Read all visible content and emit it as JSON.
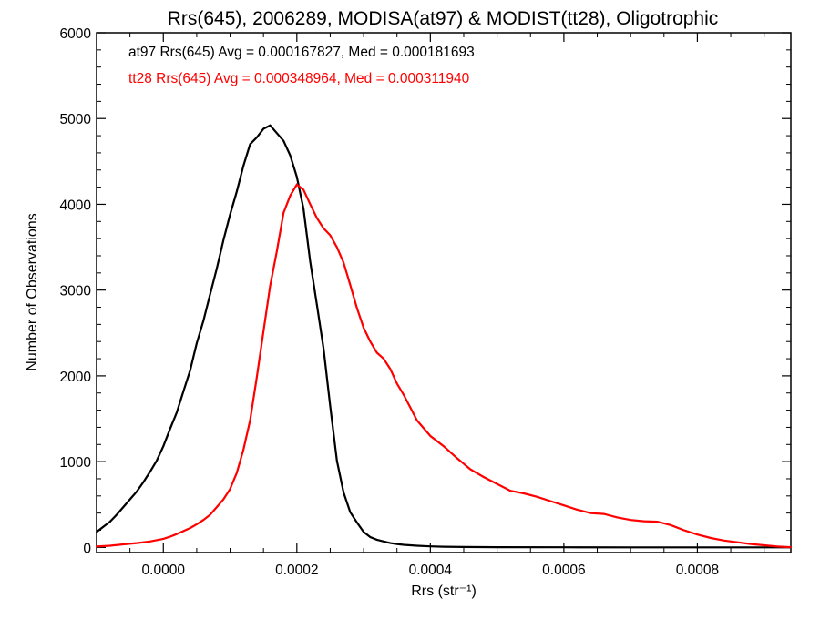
{
  "chart_data": {
    "type": "line",
    "title": "Rrs(645), 2006289, MODISA(at97) & MODIST(tt28), Oligotrophic",
    "xlabel": "Rrs (str⁻¹)",
    "ylabel": "Number of Observations",
    "xlim": [
      -0.0001,
      0.00094
    ],
    "ylim": [
      -60,
      6000
    ],
    "xticks": [
      0.0,
      0.0002,
      0.0004,
      0.0006,
      0.0008
    ],
    "xtick_labels": [
      "0.0000",
      "0.0002",
      "0.0004",
      "0.0006",
      "0.0008"
    ],
    "yticks": [
      0,
      1000,
      2000,
      3000,
      4000,
      5000,
      6000
    ],
    "ytick_labels": [
      "0",
      "1000",
      "2000",
      "3000",
      "4000",
      "5000",
      "6000"
    ],
    "grid": false,
    "legend_position": "top-left",
    "series": [
      {
        "name": "at97",
        "color": "#000000",
        "annotation": "at97 Rrs(645) Avg = 0.000167827, Med = 0.000181693",
        "x": [
          -0.0001,
          -9e-05,
          -8e-05,
          -7e-05,
          -6e-05,
          -5e-05,
          -4e-05,
          -3e-05,
          -2e-05,
          -1e-05,
          0.0,
          1e-05,
          2e-05,
          3e-05,
          4e-05,
          5e-05,
          6e-05,
          7e-05,
          8e-05,
          9e-05,
          0.0001,
          0.00011,
          0.00012,
          0.00013,
          0.00014,
          0.00015,
          0.00016,
          0.00017,
          0.00018,
          0.00019,
          0.0002,
          0.00021,
          0.00022,
          0.00023,
          0.00024,
          0.00025,
          0.00026,
          0.00027,
          0.00028,
          0.00029,
          0.0003,
          0.00031,
          0.00032,
          0.00033,
          0.00034,
          0.00035,
          0.00036,
          0.00038,
          0.0004,
          0.00042,
          0.00045,
          0.0005,
          0.0006,
          0.0007,
          0.0008,
          0.0009,
          0.00094
        ],
        "y": [
          180,
          240,
          300,
          380,
          470,
          560,
          650,
          760,
          880,
          1010,
          1180,
          1380,
          1570,
          1820,
          2060,
          2380,
          2640,
          2950,
          3250,
          3580,
          3880,
          4150,
          4450,
          4700,
          4780,
          4880,
          4920,
          4830,
          4740,
          4570,
          4320,
          3950,
          3330,
          2830,
          2320,
          1650,
          1010,
          640,
          410,
          290,
          180,
          120,
          90,
          70,
          50,
          40,
          30,
          20,
          12,
          8,
          5,
          3,
          2,
          1,
          0,
          0,
          0
        ]
      },
      {
        "name": "tt28",
        "color": "#ff0000",
        "annotation": "tt28 Rrs(645) Avg = 0.000348964, Med = 0.000311940",
        "x": [
          -0.0001,
          -8e-05,
          -6e-05,
          -4e-05,
          -2e-05,
          0.0,
          1e-05,
          2e-05,
          3e-05,
          4e-05,
          5e-05,
          6e-05,
          7e-05,
          8e-05,
          9e-05,
          0.0001,
          0.00011,
          0.00012,
          0.00013,
          0.00014,
          0.00015,
          0.00016,
          0.00017,
          0.00018,
          0.00019,
          0.0002,
          0.00021,
          0.00022,
          0.00023,
          0.00024,
          0.00025,
          0.00026,
          0.00027,
          0.00028,
          0.00029,
          0.0003,
          0.00031,
          0.00032,
          0.00033,
          0.00034,
          0.00035,
          0.00036,
          0.00037,
          0.00038,
          0.00039,
          0.0004,
          0.00042,
          0.00044,
          0.00046,
          0.00048,
          0.0005,
          0.00052,
          0.00054,
          0.00056,
          0.00058,
          0.0006,
          0.00062,
          0.00064,
          0.00066,
          0.00068,
          0.0007,
          0.00072,
          0.00074,
          0.00076,
          0.00078,
          0.0008,
          0.00082,
          0.00084,
          0.00086,
          0.00088,
          0.0009,
          0.00092,
          0.00094
        ],
        "y": [
          10,
          20,
          35,
          50,
          70,
          100,
          125,
          155,
          190,
          225,
          270,
          320,
          380,
          470,
          560,
          680,
          870,
          1140,
          1480,
          1980,
          2520,
          3050,
          3450,
          3900,
          4100,
          4230,
          4170,
          4000,
          3840,
          3720,
          3640,
          3500,
          3320,
          3060,
          2790,
          2560,
          2400,
          2270,
          2200,
          2080,
          1910,
          1780,
          1630,
          1480,
          1390,
          1300,
          1180,
          1040,
          910,
          820,
          740,
          660,
          630,
          590,
          540,
          490,
          440,
          400,
          390,
          350,
          320,
          305,
          300,
          260,
          200,
          150,
          110,
          80,
          60,
          40,
          25,
          10,
          3
        ]
      }
    ]
  }
}
